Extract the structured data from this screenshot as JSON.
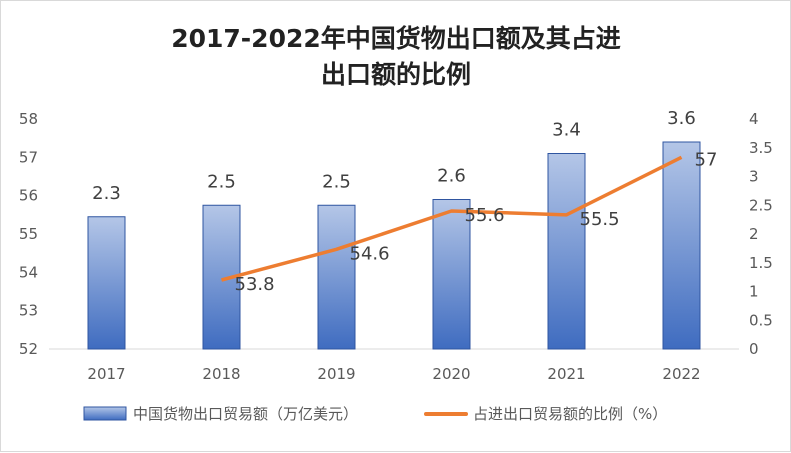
{
  "chart_data": {
    "type": "bar+line",
    "title_lines": [
      "2017-2022年中国货物出口额及其占进",
      "出口额的比例"
    ],
    "categories": [
      "2017",
      "2018",
      "2019",
      "2020",
      "2021",
      "2022"
    ],
    "series": [
      {
        "name": "中国货物出口贸易额（万亿美元）",
        "type": "bar",
        "axis": "right",
        "values": [
          2.3,
          2.5,
          2.5,
          2.6,
          3.4,
          3.6
        ],
        "color": "#4472c4"
      },
      {
        "name": "占进出口贸易额的比例（%）",
        "type": "line",
        "axis": "left",
        "values": [
          null,
          53.8,
          54.6,
          55.6,
          55.5,
          57
        ],
        "color": "#ed7d31"
      }
    ],
    "left_axis": {
      "ylim": [
        52,
        58
      ],
      "ticks": [
        "52",
        "53",
        "54",
        "55",
        "56",
        "57",
        "58"
      ]
    },
    "right_axis": {
      "ylim": [
        0,
        4
      ],
      "ticks": [
        "0",
        "0.5",
        "1",
        "1.5",
        "2",
        "2.5",
        "3",
        "3.5",
        "4"
      ]
    },
    "grid": false,
    "legend": "bottom"
  }
}
